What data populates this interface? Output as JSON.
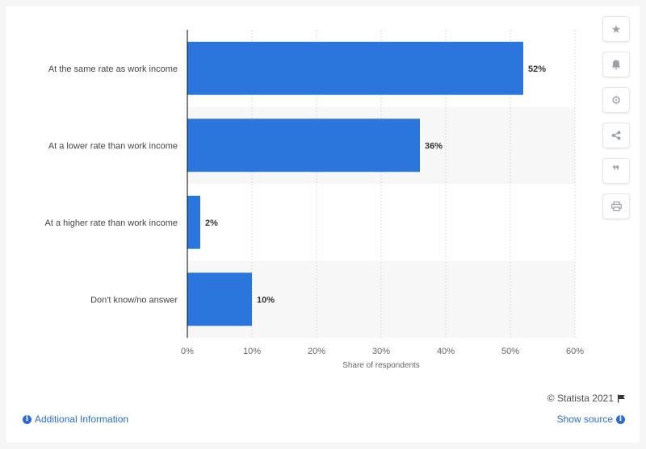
{
  "chart_data": {
    "type": "bar",
    "orientation": "horizontal",
    "categories": [
      "At the same rate as work income",
      "At a lower rate than work income",
      "At a higher rate than work income",
      "Don't know/no answer"
    ],
    "values": [
      52,
      36,
      2,
      10
    ],
    "value_labels": [
      "52%",
      "36%",
      "2%",
      "10%"
    ],
    "xlabel": "Share of respondents",
    "ylabel": "",
    "xlim": [
      0,
      60
    ],
    "x_ticks": [
      "0%",
      "10%",
      "20%",
      "30%",
      "40%",
      "50%",
      "60%"
    ],
    "grid": "vertical dotted",
    "bar_color": "#2b76dd"
  },
  "footer": {
    "credit": "© Statista 2021",
    "additional_info": "Additional Information",
    "show_source": "Show source"
  },
  "sidebar_icons": [
    "star-icon",
    "bell-icon",
    "gear-icon",
    "share-icon",
    "quote-icon",
    "print-icon"
  ]
}
